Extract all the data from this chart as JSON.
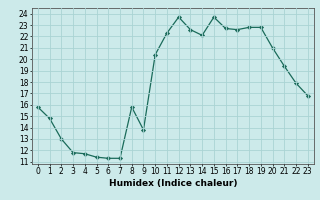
{
  "x": [
    0,
    1,
    2,
    3,
    4,
    5,
    6,
    7,
    8,
    9,
    10,
    11,
    12,
    13,
    14,
    15,
    16,
    17,
    18,
    19,
    20,
    21,
    22,
    23
  ],
  "y": [
    15.8,
    14.8,
    13.0,
    11.8,
    11.7,
    11.4,
    11.3,
    11.3,
    15.8,
    13.8,
    20.4,
    22.3,
    23.7,
    22.6,
    22.1,
    23.7,
    22.7,
    22.6,
    22.8,
    22.8,
    21.0,
    19.4,
    17.9,
    16.8
  ],
  "xlabel": "Humidex (Indice chaleur)",
  "xlim": [
    -0.5,
    23.5
  ],
  "ylim": [
    10.8,
    24.5
  ],
  "yticks": [
    11,
    12,
    13,
    14,
    15,
    16,
    17,
    18,
    19,
    20,
    21,
    22,
    23,
    24
  ],
  "xticks": [
    0,
    1,
    2,
    3,
    4,
    5,
    6,
    7,
    8,
    9,
    10,
    11,
    12,
    13,
    14,
    15,
    16,
    17,
    18,
    19,
    20,
    21,
    22,
    23
  ],
  "line_color": "#1a6b5a",
  "marker": "D",
  "marker_size": 2.2,
  "bg_color": "#cceaea",
  "grid_color": "#aad4d4",
  "label_fontsize": 6.5,
  "tick_fontsize": 5.5
}
